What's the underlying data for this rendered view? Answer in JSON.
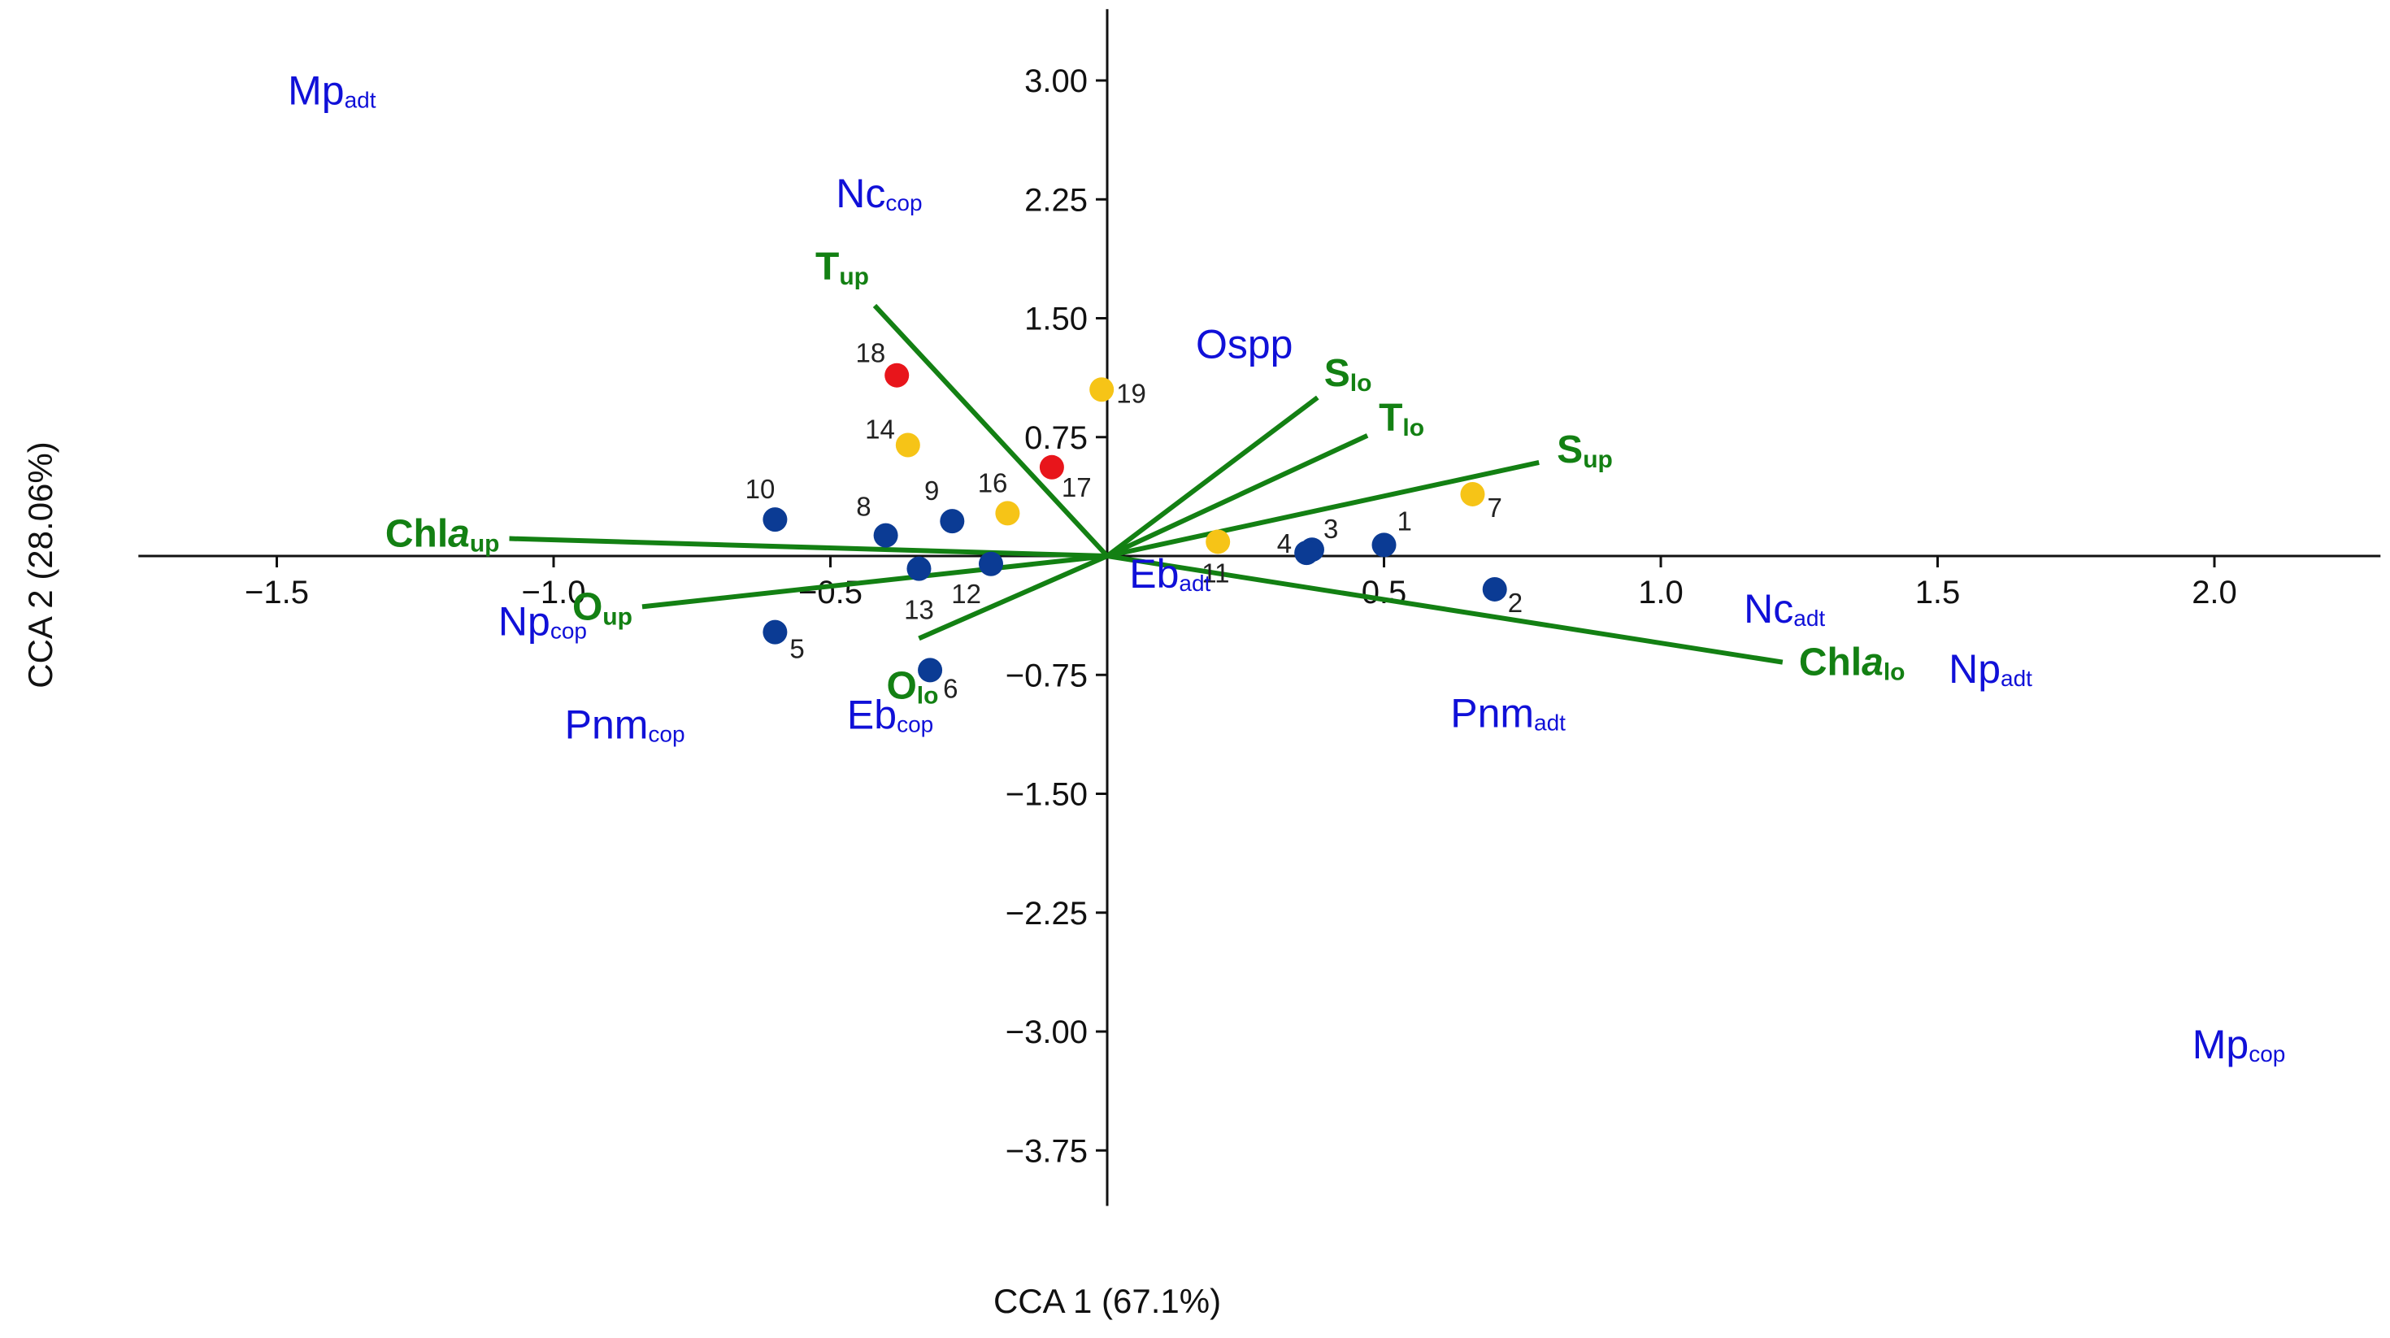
{
  "chart_data": {
    "type": "scatter",
    "title": "",
    "xlabel": "CCA 1 (67.1%)",
    "ylabel": "CCA 2 (28.06%)",
    "xlim": [
      -1.75,
      2.3
    ],
    "ylim": [
      -4.1,
      3.45
    ],
    "x_ticks": [
      -1.5,
      -1.0,
      -0.5,
      0.5,
      1.0,
      1.5,
      2.0
    ],
    "x_tick_labels": [
      "−1.5",
      "−1.0",
      "−0.5",
      "0.5",
      "1.0",
      "1.5",
      "2.0"
    ],
    "y_ticks": [
      3.0,
      2.25,
      1.5,
      0.75,
      -0.75,
      -1.5,
      -2.25,
      -3.0,
      -3.75
    ],
    "y_tick_labels": [
      "3.00",
      "2.25",
      "1.50",
      "0.75",
      "−0.75",
      "−1.50",
      "−2.25",
      "−3.00",
      "−3.75"
    ],
    "colors": {
      "blue_site": "#0b3b94",
      "yellow_site": "#f6c417",
      "red_site": "#e8151b",
      "environment": "#138013",
      "species": "#1010d8",
      "axis": "#111111"
    },
    "sites": [
      {
        "id": "1",
        "x": 0.5,
        "y": 0.07,
        "color": "#0b3b94"
      },
      {
        "id": "2",
        "x": 0.7,
        "y": -0.21,
        "color": "#0b3b94"
      },
      {
        "id": "3",
        "x": 0.37,
        "y": 0.04,
        "color": "#0b3b94"
      },
      {
        "id": "4",
        "x": 0.36,
        "y": 0.02,
        "color": "#0b3b94"
      },
      {
        "id": "5",
        "x": -0.6,
        "y": -0.48,
        "color": "#0b3b94"
      },
      {
        "id": "6",
        "x": -0.32,
        "y": -0.72,
        "color": "#0b3b94"
      },
      {
        "id": "7",
        "x": 0.66,
        "y": 0.39,
        "color": "#f6c417"
      },
      {
        "id": "8",
        "x": -0.4,
        "y": 0.13,
        "color": "#0b3b94"
      },
      {
        "id": "9",
        "x": -0.28,
        "y": 0.22,
        "color": "#0b3b94"
      },
      {
        "id": "10",
        "x": -0.6,
        "y": 0.23,
        "color": "#0b3b94"
      },
      {
        "id": "11",
        "x": 0.2,
        "y": 0.09,
        "color": "#f6c417"
      },
      {
        "id": "12",
        "x": -0.21,
        "y": -0.05,
        "color": "#0b3b94"
      },
      {
        "id": "13",
        "x": -0.34,
        "y": -0.08,
        "color": "#0b3b94"
      },
      {
        "id": "14",
        "x": -0.36,
        "y": 0.7,
        "color": "#f6c417"
      },
      {
        "id": "16",
        "x": -0.18,
        "y": 0.27,
        "color": "#f6c417"
      },
      {
        "id": "17",
        "x": -0.1,
        "y": 0.56,
        "color": "#e8151b"
      },
      {
        "id": "18",
        "x": -0.38,
        "y": 1.14,
        "color": "#e8151b"
      },
      {
        "id": "19",
        "x": -0.01,
        "y": 1.05,
        "color": "#f6c417"
      }
    ],
    "environment_vectors": [
      {
        "name": "T",
        "sub": "up",
        "italic": false,
        "x": -0.42,
        "y": 1.58
      },
      {
        "name": "S",
        "sub": "lo",
        "italic": false,
        "x": 0.38,
        "y": 1.0
      },
      {
        "name": "T",
        "sub": "lo",
        "italic": false,
        "x": 0.47,
        "y": 0.76
      },
      {
        "name": "S",
        "sub": "up",
        "italic": false,
        "x": 0.78,
        "y": 0.59
      },
      {
        "name": "Chl",
        "italicPart": "a",
        "sub": "up",
        "x": -1.08,
        "y": 0.11
      },
      {
        "name": "O",
        "sub": "up",
        "italic": false,
        "x": -0.84,
        "y": -0.32
      },
      {
        "name": "O",
        "sub": "lo",
        "italic": false,
        "x": -0.34,
        "y": -0.52
      },
      {
        "name": "Chl",
        "italicPart": "a",
        "sub": "lo",
        "x": 1.22,
        "y": -0.67
      }
    ],
    "species": [
      {
        "name": "Mp",
        "sub": "adt",
        "x": -1.48,
        "y": 2.85
      },
      {
        "name": "Nc",
        "sub": "cop",
        "x": -0.49,
        "y": 2.2
      },
      {
        "name": "Ospp",
        "sub": "",
        "x": 0.16,
        "y": 1.25
      },
      {
        "name": "Eb",
        "sub": "adt",
        "x": 0.04,
        "y": -0.2
      },
      {
        "name": "Np",
        "sub": "cop",
        "x": -1.1,
        "y": -0.5
      },
      {
        "name": "Pnm",
        "sub": "cop",
        "x": -0.98,
        "y": -1.15
      },
      {
        "name": "Eb",
        "sub": "cop",
        "x": -0.47,
        "y": -1.09
      },
      {
        "name": "Nc",
        "sub": "adt",
        "x": 1.15,
        "y": -0.42
      },
      {
        "name": "Np",
        "sub": "adt",
        "x": 1.52,
        "y": -0.8
      },
      {
        "name": "Pnm",
        "sub": "adt",
        "x": 0.62,
        "y": -1.08
      },
      {
        "name": "Mp",
        "sub": "cop",
        "x": 1.96,
        "y": -3.17
      }
    ]
  }
}
